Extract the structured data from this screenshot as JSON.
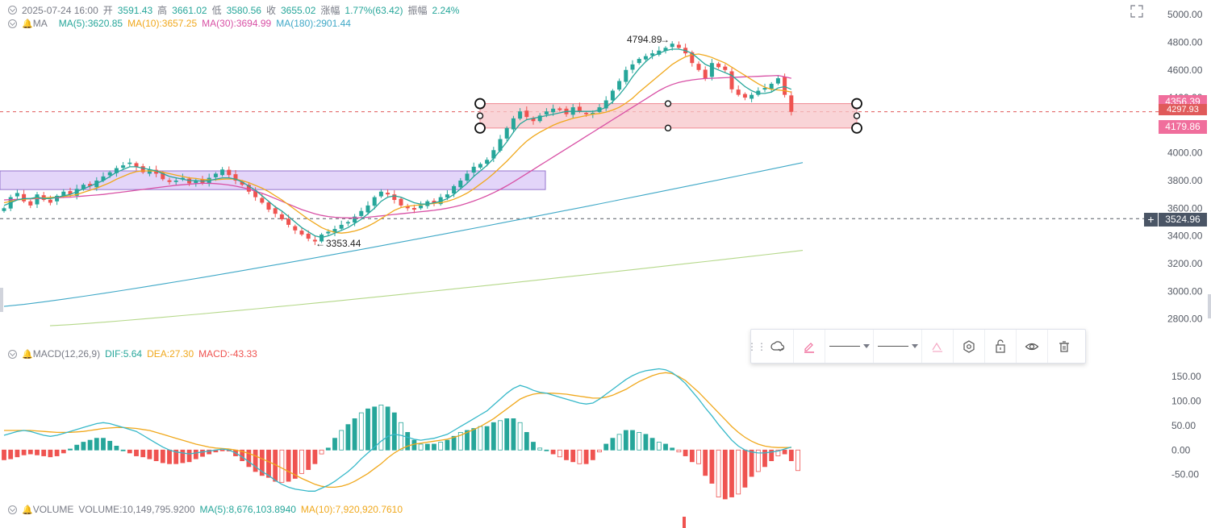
{
  "ohlc": {
    "datetime": "2025-07-24 16:00",
    "open_label": "开",
    "open": "3591.43",
    "high_label": "高",
    "high": "3661.02",
    "low_label": "低",
    "low": "3580.56",
    "close_label": "收",
    "close": "3655.02",
    "change_label": "涨幅",
    "change": "1.77%(63.42)",
    "amplitude_label": "振幅",
    "amplitude": "2.24%"
  },
  "ma_legend": {
    "name": "MA",
    "ma5": "MA(5):3620.85",
    "ma10": "MA(10):3657.25",
    "ma30": "MA(30):3694.99",
    "ma180": "MA(180):2901.44"
  },
  "macd_legend": {
    "name": "MACD(12,26,9)",
    "dif": "DIF:5.64",
    "dea": "DEA:27.30",
    "macd": "MACD:-43.33"
  },
  "volume_legend": {
    "name": "VOLUME",
    "volume": "VOLUME:10,149,795.9200",
    "ma5": "MA(5):8,676,103.8940",
    "ma10": "MA(10):7,920,920.7610"
  },
  "price_labels": {
    "top_box": "4356.39",
    "mid": "4297.93",
    "bottom_box": "4179.86",
    "crosshair": "3524.96"
  },
  "annotations": {
    "high_mark": "4794.89",
    "low_mark": "3353.44"
  },
  "colors": {
    "up": "#26a69a",
    "down": "#ef5350",
    "ma5": "#26a69a",
    "ma10": "#f0a81c",
    "ma30": "#d850a5",
    "ma180": "#3fa8c7",
    "long_ma": "#b5d88a",
    "pink_box": "#f7c6c9",
    "purple_box": "#d9c7f7"
  },
  "toolbar": {
    "icons": [
      "template-icon",
      "pencil-icon",
      "line-style-icon",
      "line-width-icon",
      "text-style-icon",
      "settings-icon",
      "lock-icon",
      "visibility-icon",
      "delete-icon"
    ]
  },
  "chart_data": [
    {
      "type": "candlestick",
      "title": "",
      "y_ticks": [
        2800,
        3000,
        3200,
        3400,
        3600,
        3800,
        4000,
        4200,
        4400,
        4600,
        4800,
        5000
      ],
      "ylim": [
        2780,
        5030
      ],
      "n_bars": 120,
      "close": [
        3600,
        3680,
        3710,
        3650,
        3620,
        3700,
        3660,
        3640,
        3690,
        3720,
        3700,
        3740,
        3770,
        3760,
        3800,
        3830,
        3860,
        3890,
        3910,
        3930,
        3900,
        3860,
        3880,
        3850,
        3810,
        3790,
        3800,
        3820,
        3780,
        3800,
        3780,
        3820,
        3850,
        3880,
        3840,
        3800,
        3770,
        3720,
        3680,
        3640,
        3590,
        3560,
        3520,
        3480,
        3440,
        3410,
        3380,
        3360,
        3410,
        3430,
        3450,
        3480,
        3500,
        3540,
        3580,
        3620,
        3680,
        3720,
        3700,
        3660,
        3620,
        3600,
        3590,
        3620,
        3650,
        3640,
        3680,
        3700,
        3760,
        3800,
        3850,
        3900,
        3920,
        3950,
        4020,
        4100,
        4180,
        4250,
        4300,
        4260,
        4230,
        4270,
        4300,
        4320,
        4310,
        4280,
        4330,
        4300,
        4280,
        4290,
        4330,
        4380,
        4450,
        4520,
        4600,
        4640,
        4680,
        4700,
        4720,
        4740,
        4760,
        4790,
        4760,
        4720,
        4650,
        4600,
        4540,
        4650,
        4620,
        4600,
        4460,
        4420,
        4400,
        4420,
        4450,
        4470,
        4500,
        4540,
        4420,
        4297
      ],
      "ma5": [
        3620,
        3640,
        3660,
        3670,
        3670,
        3680,
        3670,
        3670,
        3680,
        3690,
        3700,
        3720,
        3740,
        3760,
        3780,
        3800,
        3830,
        3860,
        3880,
        3900,
        3900,
        3890,
        3880,
        3870,
        3850,
        3830,
        3820,
        3810,
        3800,
        3800,
        3795,
        3800,
        3810,
        3820,
        3820,
        3810,
        3790,
        3760,
        3730,
        3690,
        3650,
        3610,
        3580,
        3540,
        3500,
        3460,
        3430,
        3400,
        3390,
        3400,
        3420,
        3440,
        3460,
        3490,
        3520,
        3560,
        3600,
        3650,
        3680,
        3690,
        3680,
        3660,
        3640,
        3630,
        3630,
        3640,
        3650,
        3670,
        3700,
        3740,
        3780,
        3830,
        3870,
        3910,
        3960,
        4020,
        4080,
        4150,
        4210,
        4240,
        4250,
        4260,
        4270,
        4280,
        4290,
        4300,
        4300,
        4300,
        4300,
        4300,
        4310,
        4330,
        4370,
        4420,
        4480,
        4550,
        4610,
        4660,
        4700,
        4720,
        4740,
        4750,
        4750,
        4740,
        4720,
        4680,
        4640,
        4620,
        4600,
        4580,
        4560,
        4520,
        4480,
        4450,
        4430,
        4430,
        4440,
        4470,
        4480,
        4460
      ],
      "ma10": [
        3640,
        3650,
        3660,
        3665,
        3670,
        3675,
        3675,
        3678,
        3680,
        3685,
        3690,
        3700,
        3715,
        3730,
        3745,
        3765,
        3785,
        3810,
        3830,
        3850,
        3865,
        3870,
        3870,
        3868,
        3860,
        3850,
        3840,
        3830,
        3820,
        3815,
        3808,
        3805,
        3806,
        3810,
        3812,
        3810,
        3800,
        3785,
        3765,
        3745,
        3720,
        3690,
        3660,
        3625,
        3590,
        3555,
        3520,
        3490,
        3460,
        3440,
        3425,
        3420,
        3425,
        3435,
        3450,
        3470,
        3495,
        3525,
        3555,
        3585,
        3605,
        3615,
        3620,
        3625,
        3630,
        3635,
        3640,
        3650,
        3665,
        3685,
        3710,
        3740,
        3775,
        3810,
        3850,
        3895,
        3940,
        3990,
        4040,
        4085,
        4120,
        4150,
        4175,
        4200,
        4220,
        4235,
        4250,
        4260,
        4270,
        4280,
        4285,
        4295,
        4310,
        4330,
        4360,
        4395,
        4440,
        4480,
        4520,
        4560,
        4600,
        4640,
        4670,
        4695,
        4710,
        4715,
        4705,
        4690,
        4670,
        4650,
        4620,
        4590,
        4560,
        4530,
        4500,
        4475,
        4460,
        4455,
        4450,
        4440
      ],
      "ma30": [
        3660,
        3662,
        3664,
        3666,
        3668,
        3670,
        3672,
        3674,
        3676,
        3678,
        3680,
        3684,
        3688,
        3692,
        3696,
        3700,
        3706,
        3712,
        3718,
        3724,
        3730,
        3736,
        3742,
        3748,
        3754,
        3760,
        3766,
        3770,
        3774,
        3778,
        3780,
        3780,
        3778,
        3774,
        3768,
        3760,
        3750,
        3738,
        3724,
        3708,
        3690,
        3670,
        3650,
        3630,
        3610,
        3590,
        3575,
        3560,
        3548,
        3540,
        3535,
        3532,
        3530,
        3530,
        3532,
        3535,
        3540,
        3545,
        3550,
        3555,
        3560,
        3565,
        3570,
        3575,
        3580,
        3585,
        3592,
        3600,
        3610,
        3622,
        3636,
        3652,
        3670,
        3690,
        3712,
        3736,
        3762,
        3790,
        3820,
        3850,
        3880,
        3910,
        3940,
        3970,
        4000,
        4030,
        4060,
        4090,
        4120,
        4150,
        4180,
        4210,
        4240,
        4270,
        4300,
        4330,
        4360,
        4390,
        4420,
        4450,
        4475,
        4495,
        4510,
        4520,
        4528,
        4534,
        4538,
        4540,
        4542,
        4544,
        4546,
        4548,
        4550,
        4552,
        4554,
        4556,
        4558,
        4560,
        4550,
        4540
      ],
      "ma180_start": 2890,
      "ma180_end": 3930,
      "long_ma_start": 2750,
      "long_ma_end": 3295,
      "boxes": [
        {
          "name": "pink-zone",
          "top": 4356.39,
          "bottom": 4179.86
        },
        {
          "name": "purple-zone",
          "top": 3870,
          "bottom": 3735
        }
      ],
      "high_point": 4794.89,
      "low_point": 3353.44,
      "crosshair_price": 3524.96,
      "last_price": 4297.93
    },
    {
      "type": "macd",
      "y_ticks": [
        -50,
        0,
        50,
        100,
        150
      ],
      "ylim": [
        -105,
        175
      ],
      "dif": [
        30,
        34,
        38,
        40,
        38,
        34,
        30,
        28,
        30,
        34,
        38,
        42,
        46,
        50,
        54,
        56,
        54,
        50,
        46,
        42,
        38,
        30,
        22,
        14,
        6,
        0,
        -4,
        -6,
        -8,
        -6,
        -4,
        -2,
        0,
        2,
        0,
        -6,
        -14,
        -24,
        -34,
        -44,
        -52,
        -62,
        -70,
        -76,
        -80,
        -82,
        -84,
        -84,
        -78,
        -72,
        -64,
        -54,
        -44,
        -32,
        -18,
        -6,
        6,
        18,
        28,
        32,
        30,
        26,
        22,
        20,
        22,
        24,
        28,
        32,
        40,
        48,
        56,
        64,
        72,
        80,
        92,
        104,
        116,
        126,
        132,
        128,
        122,
        118,
        116,
        112,
        108,
        104,
        100,
        96,
        94,
        96,
        104,
        114,
        124,
        134,
        144,
        152,
        158,
        162,
        164,
        166,
        164,
        158,
        148,
        136,
        120,
        104,
        86,
        70,
        52,
        36,
        20,
        8,
        0,
        -4,
        -6,
        -6,
        -4,
        -2,
        2,
        6
      ],
      "dea": [
        40,
        40,
        40,
        40,
        40,
        39,
        38,
        37,
        36,
        36,
        36,
        37,
        38,
        40,
        42,
        44,
        45,
        46,
        46,
        45,
        44,
        42,
        40,
        36,
        32,
        28,
        24,
        20,
        16,
        12,
        9,
        6,
        4,
        3,
        2,
        0,
        -3,
        -7,
        -12,
        -18,
        -24,
        -30,
        -37,
        -44,
        -51,
        -58,
        -64,
        -70,
        -74,
        -76,
        -76,
        -74,
        -70,
        -64,
        -56,
        -48,
        -38,
        -28,
        -16,
        -6,
        2,
        8,
        12,
        14,
        16,
        18,
        20,
        22,
        26,
        30,
        36,
        42,
        48,
        56,
        64,
        74,
        84,
        94,
        104,
        110,
        114,
        116,
        116,
        116,
        115,
        114,
        112,
        110,
        108,
        106,
        106,
        108,
        112,
        118,
        124,
        132,
        140,
        146,
        152,
        156,
        158,
        156,
        150,
        142,
        130,
        118,
        104,
        90,
        76,
        62,
        48,
        36,
        26,
        18,
        12,
        8,
        6,
        5,
        5,
        5
      ],
      "hist": [
        -20,
        -18,
        -14,
        -10,
        -8,
        -10,
        -12,
        -14,
        -12,
        -6,
        2,
        10,
        16,
        20,
        24,
        24,
        18,
        8,
        0,
        -6,
        -12,
        -14,
        -18,
        -22,
        -26,
        -28,
        -28,
        -26,
        -24,
        -18,
        -13,
        -8,
        -4,
        -1,
        -2,
        -12,
        -22,
        -34,
        -44,
        -52,
        -56,
        -64,
        -66,
        -64,
        -58,
        -48,
        -40,
        -28,
        -8,
        4,
        24,
        40,
        52,
        64,
        76,
        84,
        88,
        92,
        88,
        76,
        56,
        36,
        20,
        12,
        12,
        12,
        16,
        20,
        28,
        36,
        40,
        44,
        48,
        48,
        56,
        60,
        64,
        64,
        56,
        36,
        16,
        4,
        0,
        -8,
        -14,
        -20,
        -24,
        -28,
        -28,
        -20,
        -4,
        12,
        24,
        32,
        40,
        40,
        36,
        32,
        24,
        16,
        12,
        4,
        -4,
        -12,
        -24,
        -28,
        -52,
        -68,
        -96,
        -100,
        -96,
        -90,
        -76,
        -54,
        -44,
        -34,
        -22,
        -12,
        -8,
        -22,
        -42
      ],
      "hist_hollow_from_index": 40
    }
  ]
}
